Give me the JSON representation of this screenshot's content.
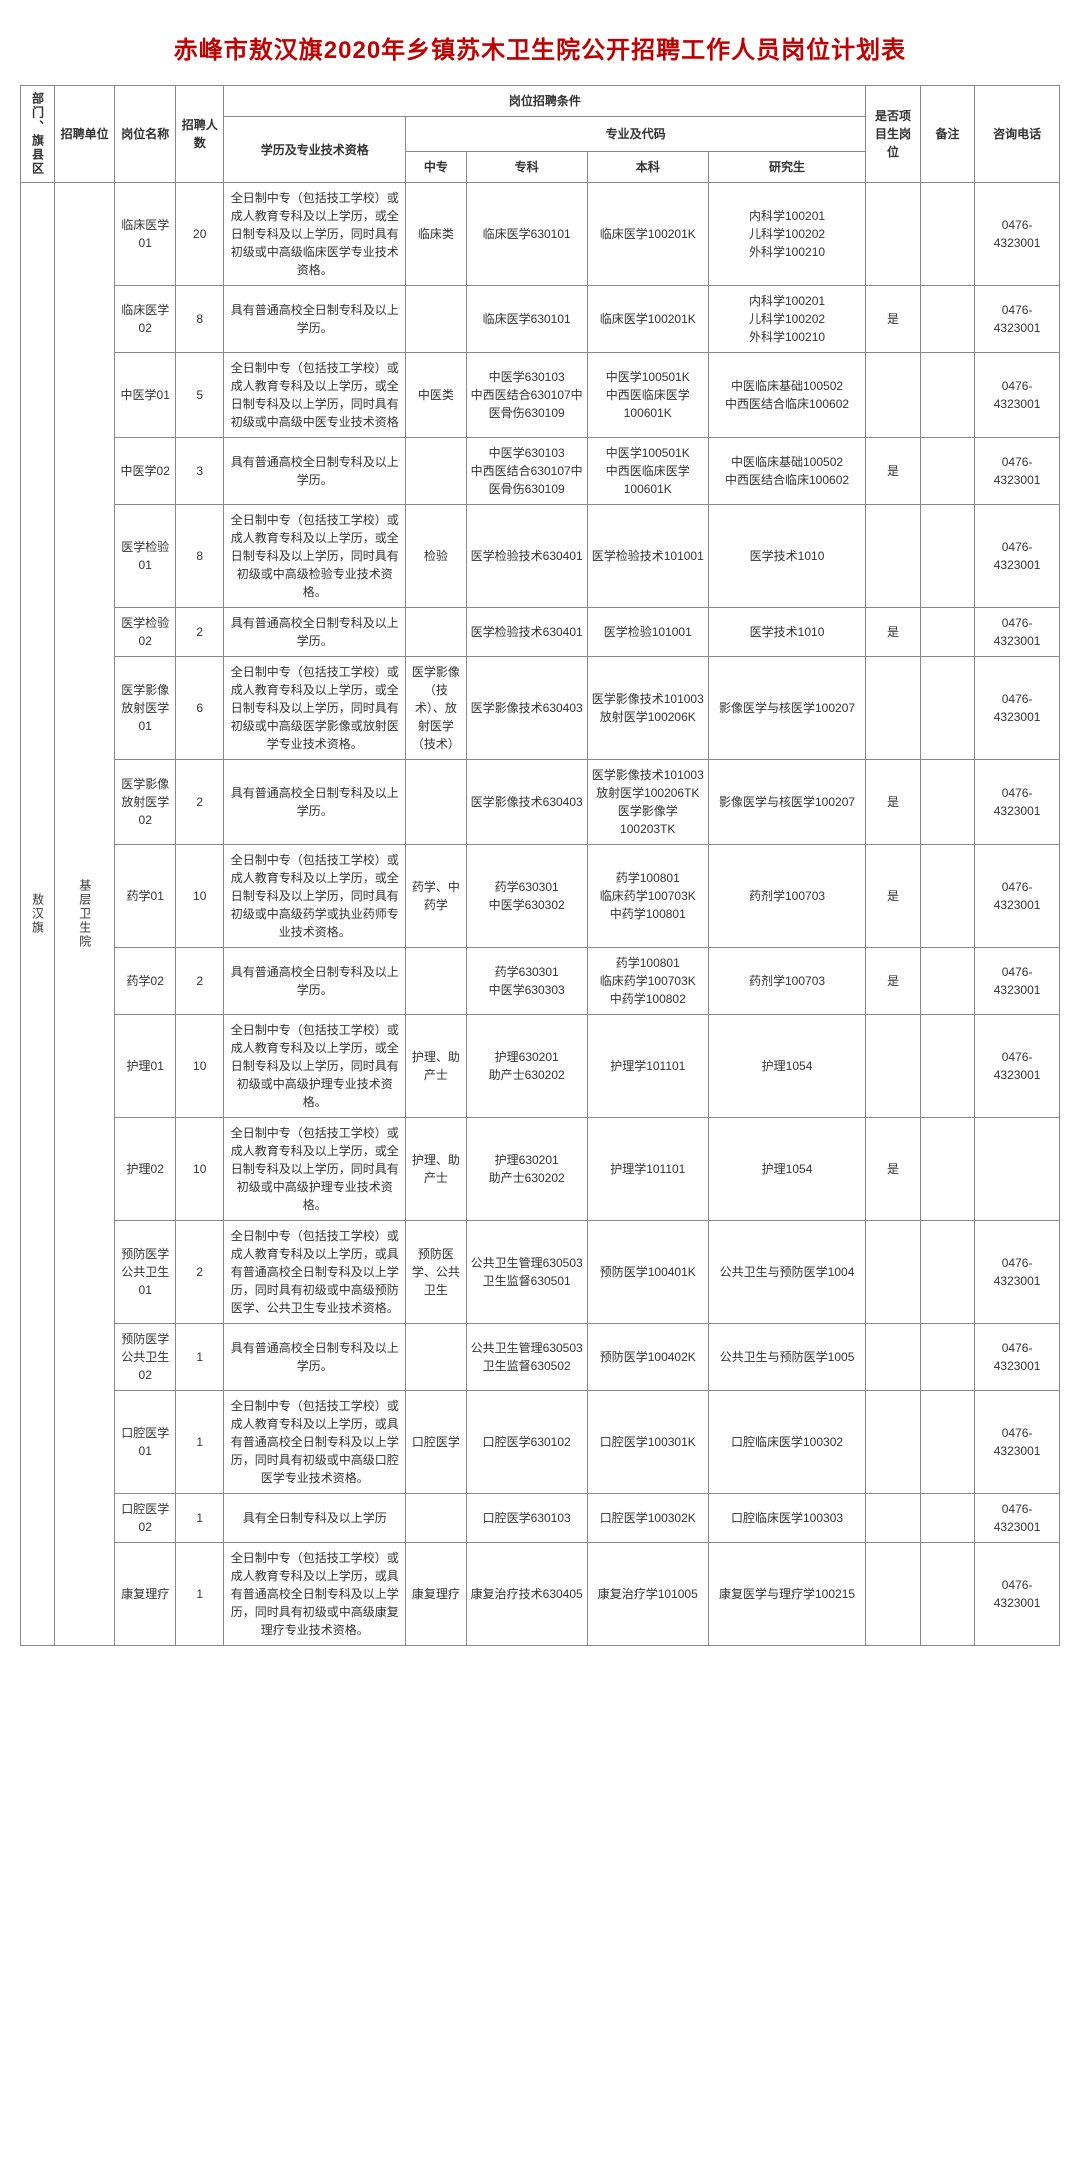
{
  "title": "赤峰市敖汉旗2020年乡镇苏木卫生院公开招聘工作人员岗位计划表",
  "headers": {
    "dept": "部门、旗县区",
    "unit": "招聘单位",
    "pos": "岗位名称",
    "count": "招聘人数",
    "cond": "岗位招聘条件",
    "edu": "学历及专业技术资格",
    "majors": "专业及代码",
    "zz": "中专",
    "zk": "专科",
    "bk": "本科",
    "yjs": "研究生",
    "proj": "是否项目生岗位",
    "remark": "备注",
    "phone": "咨询电话"
  },
  "dept": "敖汉旗",
  "unit": "基层卫生院",
  "rows": [
    {
      "pos": "临床医学01",
      "count": "20",
      "edu": "全日制中专（包括技工学校）或成人教育专科及以上学历，或全日制专科及以上学历，同时具有初级或中高级临床医学专业技术资格。",
      "zz": "临床类",
      "zk": "临床医学630101",
      "bk": "临床医学100201K",
      "yjs": "内科学100201\n儿科学100202\n外科学100210",
      "proj": "",
      "remark": "",
      "phone": "0476-4323001"
    },
    {
      "pos": "临床医学02",
      "count": "8",
      "edu": "具有普通高校全日制专科及以上学历。",
      "zz": "",
      "zk": "临床医学630101",
      "bk": "临床医学100201K",
      "yjs": "内科学100201\n儿科学100202\n外科学100210",
      "proj": "是",
      "remark": "",
      "phone": "0476-4323001"
    },
    {
      "pos": "中医学01",
      "count": "5",
      "edu": "全日制中专（包括技工学校）或成人教育专科及以上学历，或全日制专科及以上学历，同时具有初级或中高级中医专业技术资格",
      "zz": "中医类",
      "zk": "中医学630103\n中西医结合630107中医骨伤630109",
      "bk": "中医学100501K\n中西医临床医学100601K",
      "yjs": "中医临床基础100502\n中西医结合临床100602",
      "proj": "",
      "remark": "",
      "phone": "0476-4323001"
    },
    {
      "pos": "中医学02",
      "count": "3",
      "edu": "具有普通高校全日制专科及以上学历。",
      "zz": "",
      "zk": "中医学630103\n中西医结合630107中医骨伤630109",
      "bk": "中医学100501K\n中西医临床医学100601K",
      "yjs": "中医临床基础100502\n中西医结合临床100602",
      "proj": "是",
      "remark": "",
      "phone": "0476-4323001"
    },
    {
      "pos": "医学检验01",
      "count": "8",
      "edu": "全日制中专（包括技工学校）或成人教育专科及以上学历，或全日制专科及以上学历，同时具有初级或中高级检验专业技术资格。",
      "zz": "检验",
      "zk": "医学检验技术630401",
      "bk": "医学检验技术101001",
      "yjs": "医学技术1010",
      "proj": "",
      "remark": "",
      "phone": "0476-4323001"
    },
    {
      "pos": "医学检验02",
      "count": "2",
      "edu": "具有普通高校全日制专科及以上学历。",
      "zz": "",
      "zk": "医学检验技术630401",
      "bk": "医学检验101001",
      "yjs": "医学技术1010",
      "proj": "是",
      "remark": "",
      "phone": "0476-4323001"
    },
    {
      "pos": "医学影像放射医学01",
      "count": "6",
      "edu": "全日制中专（包括技工学校）或成人教育专科及以上学历，或全日制专科及以上学历，同时具有初级或中高级医学影像或放射医学专业技术资格。",
      "zz": "医学影像（技术）、放射医学（技术）",
      "zk": "医学影像技术630403",
      "bk": "医学影像技术101003放射医学100206K",
      "yjs": "影像医学与核医学100207",
      "proj": "",
      "remark": "",
      "phone": "0476-4323001"
    },
    {
      "pos": "医学影像放射医学02",
      "count": "2",
      "edu": "具有普通高校全日制专科及以上学历。",
      "zz": "",
      "zk": "医学影像技术630403",
      "bk": "医学影像技术101003放射医学100206TK医学影像学100203TK",
      "yjs": "影像医学与核医学100207",
      "proj": "是",
      "remark": "",
      "phone": "0476-4323001"
    },
    {
      "pos": "药学01",
      "count": "10",
      "edu": "全日制中专（包括技工学校）或成人教育专科及以上学历，或全日制专科及以上学历，同时具有初级或中高级药学或执业药师专业技术资格。",
      "zz": "药学、中药学",
      "zk": "药学630301\n中医学630302",
      "bk": "药学100801\n临床药学100703K\n中药学100801",
      "yjs": "药剂学100703",
      "proj": "是",
      "remark": "",
      "phone": "0476-4323001"
    },
    {
      "pos": "药学02",
      "count": "2",
      "edu": "具有普通高校全日制专科及以上学历。",
      "zz": "",
      "zk": "药学630301\n中医学630303",
      "bk": "药学100801\n临床药学100703K\n中药学100802",
      "yjs": "药剂学100703",
      "proj": "是",
      "remark": "",
      "phone": "0476-4323001"
    },
    {
      "pos": "护理01",
      "count": "10",
      "edu": "全日制中专（包括技工学校）或成人教育专科及以上学历，或全日制专科及以上学历，同时具有初级或中高级护理专业技术资格。",
      "zz": "护理、助产士",
      "zk": "护理630201\n助产士630202",
      "bk": "护理学101101",
      "yjs": "护理1054",
      "proj": "",
      "remark": "",
      "phone": "0476-4323001"
    },
    {
      "pos": "护理02",
      "count": "10",
      "edu": "全日制中专（包括技工学校）或成人教育专科及以上学历，或全日制专科及以上学历，同时具有初级或中高级护理专业技术资格。",
      "zz": "护理、助产士",
      "zk": "护理630201\n助产士630202",
      "bk": "护理学101101",
      "yjs": "护理1054",
      "proj": "是",
      "remark": "",
      "phone": ""
    },
    {
      "pos": "预防医学公共卫生01",
      "count": "2",
      "edu": "全日制中专（包括技工学校）或成人教育专科及以上学历，或具有普通高校全日制专科及以上学历，同时具有初级或中高级预防医学、公共卫生专业技术资格。",
      "zz": "预防医学、公共卫生",
      "zk": "公共卫生管理630503\n卫生监督630501",
      "bk": "预防医学100401K",
      "yjs": "公共卫生与预防医学1004",
      "proj": "",
      "remark": "",
      "phone": "0476-4323001"
    },
    {
      "pos": "预防医学公共卫生02",
      "count": "1",
      "edu": "具有普通高校全日制专科及以上学历。",
      "zz": "",
      "zk": "公共卫生管理630503\n卫生监督630502",
      "bk": "预防医学100402K",
      "yjs": "公共卫生与预防医学1005",
      "proj": "",
      "remark": "",
      "phone": "0476-4323001"
    },
    {
      "pos": "口腔医学01",
      "count": "1",
      "edu": "全日制中专（包括技工学校）或成人教育专科及以上学历，或具有普通高校全日制专科及以上学历，同时具有初级或中高级口腔医学专业技术资格。",
      "zz": "口腔医学",
      "zk": "口腔医学630102",
      "bk": "口腔医学100301K",
      "yjs": "口腔临床医学100302",
      "proj": "",
      "remark": "",
      "phone": "0476-4323001"
    },
    {
      "pos": "口腔医学02",
      "count": "1",
      "edu": "具有全日制专科及以上学历",
      "zz": "",
      "zk": "口腔医学630103",
      "bk": "口腔医学100302K",
      "yjs": "口腔临床医学100303",
      "proj": "",
      "remark": "",
      "phone": "0476-4323001"
    },
    {
      "pos": "康复理疗",
      "count": "1",
      "edu": "全日制中专（包括技工学校）或成人教育专科及以上学历，或具有普通高校全日制专科及以上学历，同时具有初级或中高级康复理疗专业技术资格。",
      "zz": "康复理疗",
      "zk": "康复治疗技术630405",
      "bk": "康复治疗学101005",
      "yjs": "康复医学与理疗学100215",
      "proj": "",
      "remark": "",
      "phone": "0476-4323001"
    }
  ]
}
